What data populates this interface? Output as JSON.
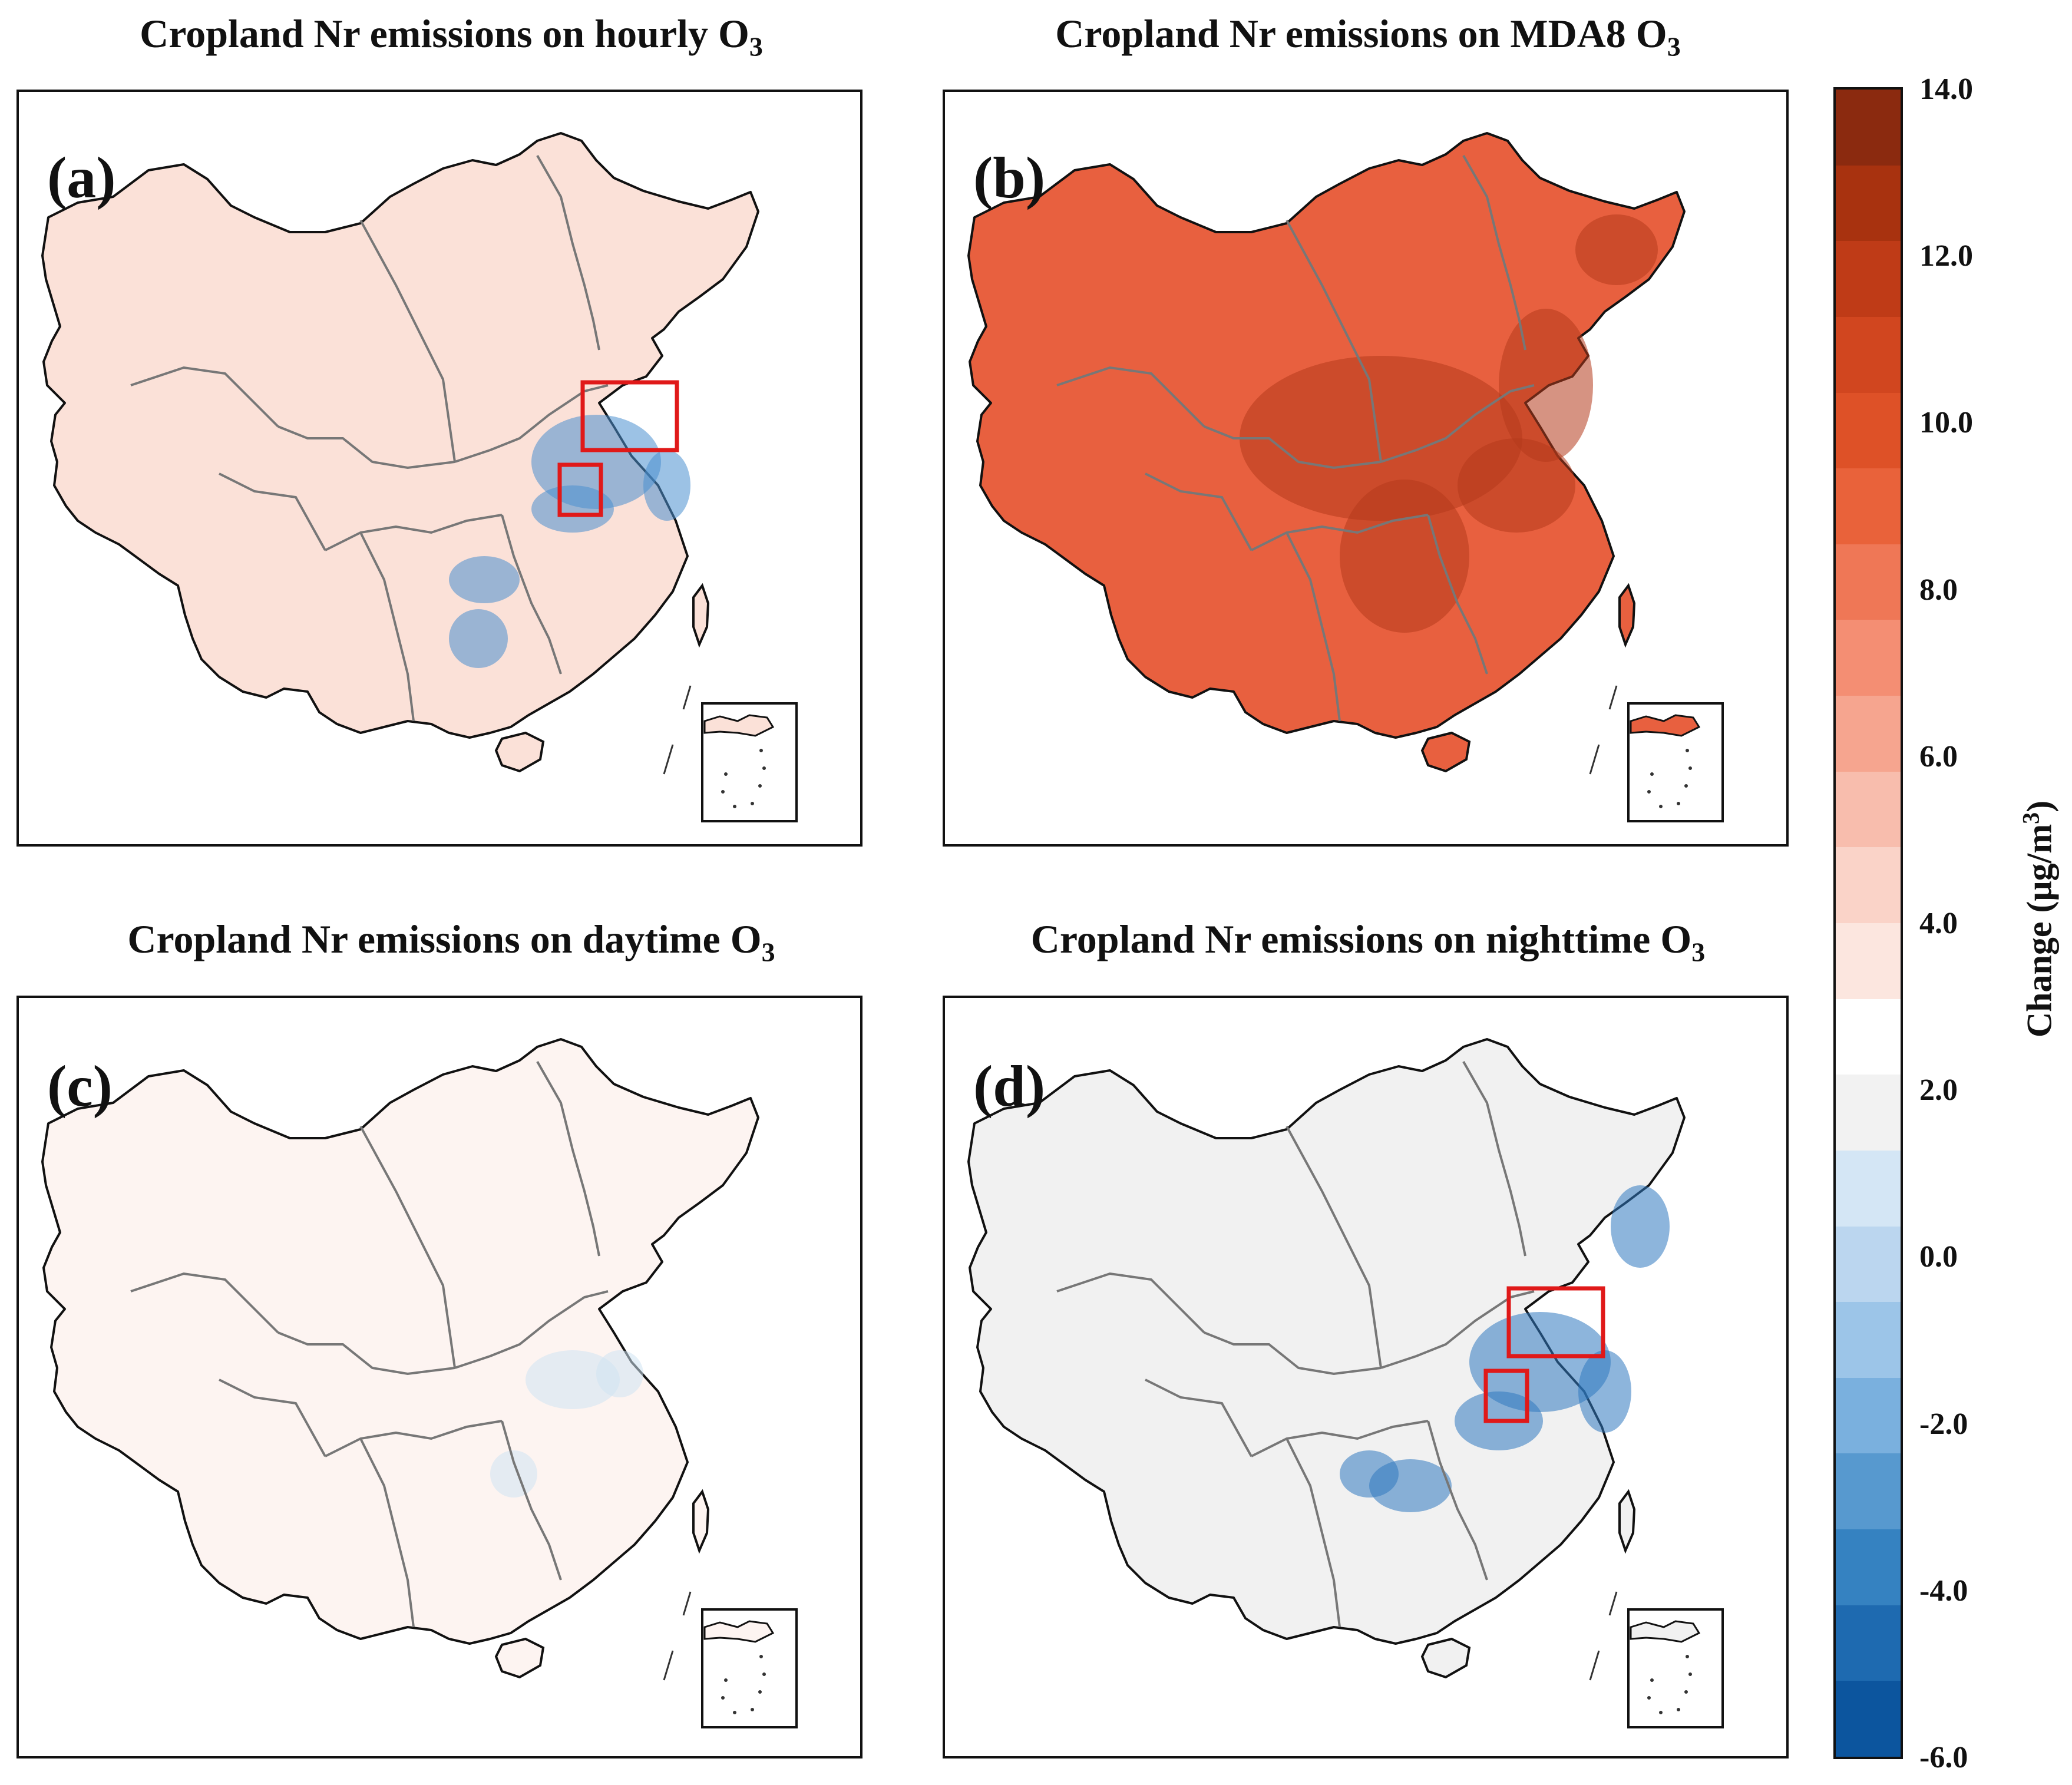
{
  "panels": [
    {
      "id": "a",
      "label": "(a)",
      "title": "Cropland Nr emissions on hourly O",
      "title_sub": "3",
      "fill": "#fbe1d8",
      "hotspot": "#4a8fd0",
      "has_boxes": true
    },
    {
      "id": "b",
      "label": "(b)",
      "title": "Cropland Nr emissions on MDA8 O",
      "title_sub": "3",
      "fill": "#e8603f",
      "hotspot": "#b43a1c",
      "has_boxes": false
    },
    {
      "id": "c",
      "label": "(c)",
      "title": "Cropland Nr emissions on daytime O",
      "title_sub": "3",
      "fill": "#fdf4f1",
      "hotspot": "#cfe3f3",
      "has_boxes": false
    },
    {
      "id": "d",
      "label": "(d)",
      "title": "Cropland Nr emissions on nighttime O",
      "title_sub": "3",
      "fill": "#f1f1f1",
      "hotspot": "#2f78c0",
      "has_boxes": true
    }
  ],
  "colorbar": {
    "min": -6.0,
    "max": 14.0,
    "ticks": [
      "14.0",
      "12.0",
      "10.0",
      "8.0",
      "6.0",
      "4.0",
      "2.0",
      "0.0",
      "-2.0",
      "-4.0",
      "-6.0"
    ],
    "title_main": "Change (μg/m",
    "title_sup": "3",
    "title_end": ")",
    "colors_top_to_bottom": [
      "#8b2a0f",
      "#a8320f",
      "#bf3b17",
      "#d1461f",
      "#de5127",
      "#e9623a",
      "#ef7756",
      "#f48e73",
      "#f6a58f",
      "#f8bdad",
      "#fad3c8",
      "#fce6df",
      "#ffffff",
      "#f2f2f2",
      "#d4e6f5",
      "#bbd6ef",
      "#9cc5e8",
      "#7ab0de",
      "#5799cf",
      "#3582c1",
      "#1e6ab0",
      "#0c559e"
    ]
  }
}
